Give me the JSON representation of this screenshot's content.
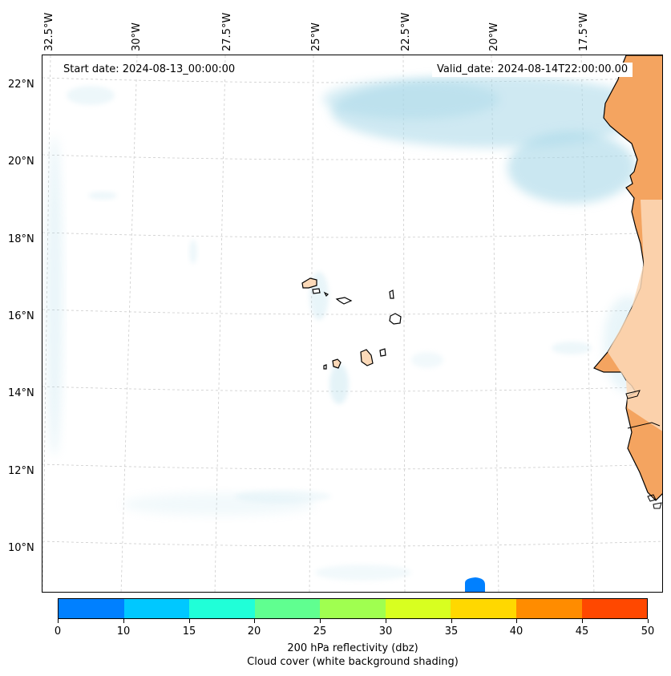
{
  "map": {
    "start_date": "Start date: 2024-08-13_00:00:00",
    "valid_date": "Valid_date: 2024-08-14T22:00:00.00",
    "longitude_labels": [
      "32.5°W",
      "30°W",
      "27.5°W",
      "25°W",
      "22.5°W",
      "20°W",
      "17.5°W"
    ],
    "latitude_labels": [
      "22°N",
      "20°N",
      "18°N",
      "16°N",
      "14°N",
      "12°N",
      "10°N"
    ],
    "land_color": "#f4a460",
    "cloud_color": "#a8d8e8",
    "gridline_color": "#cccccc"
  },
  "colorbar": {
    "tick_labels": [
      "0",
      "10",
      "15",
      "20",
      "25",
      "30",
      "35",
      "40",
      "45",
      "50"
    ],
    "colors": [
      "#0080ff",
      "#00c8ff",
      "#20ffd8",
      "#60ff90",
      "#a0ff50",
      "#d8ff20",
      "#ffd800",
      "#ff8c00",
      "#ff4800"
    ],
    "title_line1": "200 hPa reflectivity (dbz)",
    "title_line2": "Cloud cover (white background shading)"
  }
}
